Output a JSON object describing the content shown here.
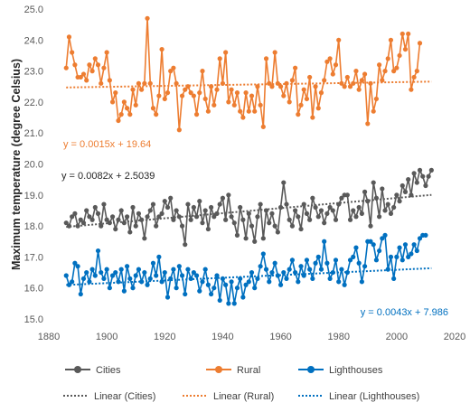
{
  "chart_data": {
    "type": "line",
    "ylabel": "Maximum temperature (degree Celsius)",
    "xlabel": "",
    "title": "",
    "xlim": [
      1880,
      2020
    ],
    "ylim": [
      15.0,
      25.0
    ],
    "xticks": [
      1880,
      1900,
      1920,
      1940,
      1960,
      1980,
      2000,
      2020
    ],
    "yticks": [
      15.0,
      16.0,
      17.0,
      18.0,
      19.0,
      20.0,
      21.0,
      22.0,
      23.0,
      24.0,
      25.0
    ],
    "x_start": 1886,
    "colors": {
      "cities": "#595959",
      "rural": "#ED7D31",
      "lighthouses": "#0070C0"
    },
    "series": [
      {
        "name": "Cities",
        "key": "cities",
        "values": [
          18.1,
          18.0,
          18.3,
          18.4,
          18.0,
          18.2,
          18.1,
          18.5,
          18.3,
          18.2,
          18.6,
          18.4,
          18.0,
          18.7,
          18.2,
          18.1,
          18.3,
          17.9,
          18.2,
          18.5,
          18.1,
          18.3,
          17.8,
          18.6,
          18.0,
          18.4,
          18.2,
          17.6,
          18.3,
          18.5,
          18.7,
          18.0,
          18.3,
          18.4,
          18.8,
          18.6,
          18.9,
          18.2,
          18.5,
          18.3,
          18.0,
          17.4,
          18.7,
          18.2,
          18.6,
          18.3,
          18.8,
          18.1,
          18.5,
          17.9,
          18.6,
          18.3,
          18.4,
          18.7,
          18.9,
          18.2,
          19.0,
          18.3,
          18.1,
          17.7,
          18.6,
          18.2,
          17.6,
          18.4,
          18.0,
          17.5,
          18.3,
          18.7,
          17.6,
          18.5,
          18.1,
          18.4,
          18.0,
          17.8,
          18.6,
          19.4,
          18.7,
          18.2,
          18.0,
          18.5,
          18.3,
          17.9,
          18.7,
          18.4,
          18.2,
          18.9,
          18.6,
          18.3,
          18.5,
          18.1,
          18.4,
          18.6,
          18.5,
          18.2,
          18.7,
          18.9,
          19.0,
          19.0,
          18.2,
          18.5,
          18.3,
          18.6,
          18.4,
          19.1,
          18.8,
          18.0,
          19.4,
          18.9,
          18.3,
          19.2,
          18.5,
          18.7,
          18.4,
          18.6,
          19.0,
          18.8,
          19.3,
          19.1,
          19.5,
          19.0,
          19.7,
          19.4,
          19.8,
          19.6,
          19.3,
          19.6,
          19.8
        ]
      },
      {
        "name": "Rural",
        "key": "rural",
        "values": [
          23.1,
          24.1,
          23.6,
          23.2,
          22.8,
          22.8,
          22.9,
          22.7,
          23.2,
          23.0,
          23.4,
          23.2,
          22.6,
          23.1,
          23.6,
          22.7,
          22.0,
          22.3,
          21.4,
          21.6,
          22.0,
          21.8,
          21.6,
          22.4,
          21.9,
          22.6,
          22.4,
          22.6,
          24.7,
          22.6,
          21.8,
          21.6,
          22.2,
          23.7,
          22.1,
          22.3,
          23.0,
          23.1,
          22.6,
          21.1,
          22.2,
          22.4,
          22.5,
          22.3,
          22.2,
          21.6,
          22.3,
          23.0,
          22.1,
          21.7,
          22.5,
          21.9,
          22.4,
          23.4,
          22.6,
          23.6,
          22.0,
          22.4,
          21.9,
          22.3,
          21.7,
          21.5,
          22.3,
          21.7,
          22.2,
          21.7,
          22.5,
          21.9,
          21.2,
          23.4,
          22.6,
          22.5,
          23.6,
          22.6,
          22.5,
          22.2,
          22.6,
          22.0,
          22.7,
          23.1,
          21.6,
          21.9,
          22.4,
          22.1,
          22.8,
          21.5,
          22.5,
          21.8,
          22.3,
          22.7,
          23.3,
          23.4,
          22.9,
          23.2,
          24.0,
          22.6,
          22.5,
          22.8,
          22.5,
          22.6,
          23.0,
          22.4,
          22.7,
          22.9,
          21.3,
          22.6,
          21.7,
          22.1,
          23.2,
          22.7,
          23.0,
          23.4,
          24.0,
          23.0,
          23.1,
          23.5,
          24.2,
          23.7,
          24.2,
          22.4,
          22.8,
          23.0,
          23.9
        ]
      },
      {
        "name": "Lighthouses",
        "key": "lighthouses",
        "values": [
          16.4,
          16.1,
          16.2,
          16.8,
          16.7,
          15.8,
          16.3,
          16.5,
          16.2,
          16.6,
          16.4,
          17.2,
          16.5,
          16.3,
          16.6,
          16.0,
          16.4,
          16.5,
          16.2,
          16.6,
          15.9,
          16.7,
          16.3,
          16.0,
          16.4,
          16.6,
          16.2,
          16.5,
          16.1,
          16.3,
          16.8,
          16.4,
          17.0,
          16.2,
          16.5,
          15.7,
          16.3,
          16.6,
          16.0,
          16.7,
          16.4,
          15.8,
          16.6,
          16.3,
          16.5,
          16.4,
          15.9,
          16.2,
          16.6,
          16.1,
          15.8,
          16.0,
          16.4,
          15.6,
          16.3,
          16.1,
          15.5,
          16.2,
          15.5,
          16.0,
          16.3,
          15.7,
          16.1,
          16.2,
          16.5,
          16.0,
          16.3,
          16.7,
          17.1,
          16.6,
          16.2,
          16.5,
          16.8,
          16.4,
          16.1,
          16.5,
          16.3,
          16.6,
          16.9,
          16.5,
          16.2,
          16.7,
          16.4,
          16.9,
          16.6,
          16.3,
          16.8,
          17.0,
          16.6,
          17.5,
          16.8,
          16.3,
          16.5,
          16.9,
          16.2,
          16.6,
          16.1,
          16.5,
          16.9,
          17.0,
          17.3,
          16.8,
          16.2,
          16.7,
          17.5,
          17.5,
          17.4,
          16.9,
          17.2,
          17.6,
          17.7,
          16.6,
          17.0,
          16.3,
          17.0,
          17.3,
          16.9,
          17.4,
          17.0,
          17.1,
          17.4,
          17.2,
          17.6,
          17.7,
          17.7
        ]
      }
    ],
    "trendlines": [
      {
        "name": "Linear (Cities)",
        "key": "cities",
        "slope": 0.0082,
        "intercept": 2.5039,
        "equation": "y = 0.0082x + 2.5039"
      },
      {
        "name": "Linear (Rural)",
        "key": "rural",
        "slope": 0.0015,
        "intercept": 19.64,
        "equation": "y = 0.0015x + 19.64"
      },
      {
        "name": "Linear (Lighthouses)",
        "key": "lighthouses",
        "slope": 0.0043,
        "intercept": 7.986,
        "equation": "y = 0.0043x + 7.986"
      }
    ],
    "legend_position": "bottom",
    "grid": false
  }
}
